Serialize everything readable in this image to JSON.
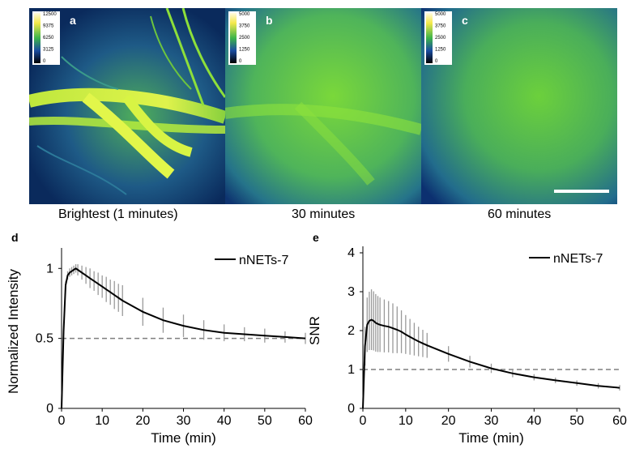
{
  "figure": {
    "image_panels": [
      {
        "letter": "a",
        "caption": "Brightest (1 minutes)",
        "colorbar_ticks": [
          "12500",
          "9375",
          "6250",
          "3125",
          "0"
        ]
      },
      {
        "letter": "b",
        "caption": "30 minutes",
        "colorbar_ticks": [
          "5000",
          "3750",
          "2500",
          "1250",
          "0"
        ]
      },
      {
        "letter": "c",
        "caption": "60 minutes",
        "colorbar_ticks": [
          "5000",
          "3750",
          "2500",
          "1250",
          "0"
        ]
      }
    ],
    "colors": {
      "line": "#000000",
      "error_bar": "#9a9a9a",
      "reference": "#7f7f7f",
      "image_bg": "#103a78",
      "image_signal": "#8fe43a"
    }
  },
  "chart_data": [
    {
      "panel": "d",
      "type": "line",
      "xlabel": "Time (min)",
      "ylabel": "Normalized Intensity",
      "xlim": [
        0,
        60
      ],
      "ylim": [
        0,
        1.1
      ],
      "xticks": [
        "0",
        "10",
        "20",
        "30",
        "40",
        "50",
        "60"
      ],
      "yticks": [
        "0",
        "0.5",
        "1"
      ],
      "legend": "top-right",
      "reference_line": 0.5,
      "series": [
        {
          "name": "nNETs-7",
          "x": [
            0,
            0.5,
            1,
            1.5,
            2,
            2.5,
            3,
            3.5,
            4,
            5,
            6,
            7,
            8,
            9,
            10,
            11,
            12,
            13,
            14,
            15,
            20,
            25,
            30,
            35,
            40,
            45,
            50,
            55,
            60
          ],
          "y": [
            0.0,
            0.55,
            0.88,
            0.95,
            0.97,
            0.98,
            0.99,
            1.0,
            0.99,
            0.97,
            0.95,
            0.93,
            0.91,
            0.89,
            0.87,
            0.85,
            0.83,
            0.81,
            0.79,
            0.77,
            0.69,
            0.63,
            0.59,
            0.56,
            0.54,
            0.53,
            0.52,
            0.51,
            0.5
          ],
          "err": [
            0,
            0.02,
            0.03,
            0.03,
            0.03,
            0.03,
            0.03,
            0.03,
            0.04,
            0.05,
            0.06,
            0.07,
            0.07,
            0.08,
            0.08,
            0.09,
            0.09,
            0.1,
            0.1,
            0.11,
            0.1,
            0.09,
            0.08,
            0.07,
            0.06,
            0.05,
            0.05,
            0.04,
            0.04
          ]
        }
      ]
    },
    {
      "panel": "e",
      "type": "line",
      "xlabel": "Time (min)",
      "ylabel": "SNR",
      "xlim": [
        0,
        60
      ],
      "ylim": [
        0,
        4
      ],
      "xticks": [
        "0",
        "10",
        "20",
        "30",
        "40",
        "50",
        "60"
      ],
      "yticks": [
        "0",
        "1",
        "2",
        "3",
        "4"
      ],
      "legend": "top-right",
      "reference_line": 1,
      "series": [
        {
          "name": "nNETs-7",
          "x": [
            0,
            0.5,
            1,
            1.5,
            2,
            2.5,
            3,
            3.5,
            4,
            5,
            6,
            7,
            8,
            9,
            10,
            11,
            12,
            13,
            14,
            15,
            20,
            25,
            30,
            35,
            40,
            45,
            50,
            55,
            60
          ],
          "y": [
            0.0,
            1.6,
            2.15,
            2.25,
            2.28,
            2.25,
            2.2,
            2.17,
            2.15,
            2.12,
            2.1,
            2.06,
            2.02,
            1.97,
            1.9,
            1.84,
            1.78,
            1.72,
            1.67,
            1.62,
            1.4,
            1.2,
            1.03,
            0.9,
            0.8,
            0.72,
            0.65,
            0.58,
            0.53
          ],
          "err": [
            0,
            0.5,
            0.7,
            0.75,
            0.78,
            0.76,
            0.74,
            0.72,
            0.7,
            0.68,
            0.66,
            0.64,
            0.6,
            0.55,
            0.5,
            0.46,
            0.42,
            0.38,
            0.35,
            0.32,
            0.2,
            0.15,
            0.12,
            0.1,
            0.08,
            0.07,
            0.07,
            0.07,
            0.07
          ]
        }
      ]
    }
  ]
}
